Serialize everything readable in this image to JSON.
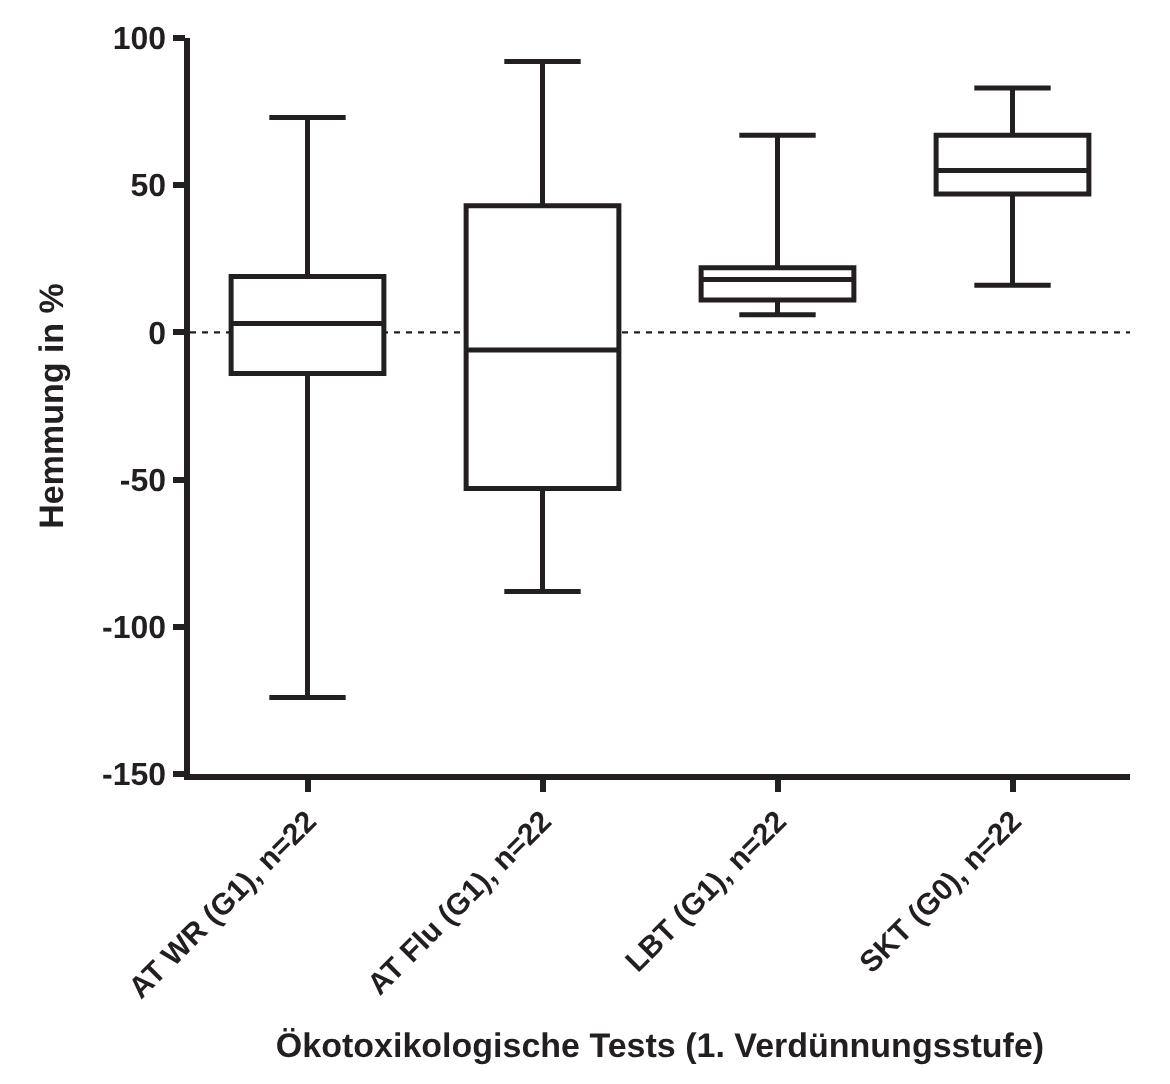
{
  "chart_data": {
    "type": "box",
    "xlabel": "Ökotoxikologische Tests (1. Verdünnungsstufe)",
    "ylabel": "Hemmung in %",
    "categories": [
      "AT WR (G1), n=22",
      "AT Flu (G1), n=22",
      "LBT (G1), n=22",
      "SKT (G0), n=22"
    ],
    "boxes": [
      {
        "low": -124,
        "q1": -14,
        "median": 3,
        "q3": 19,
        "high": 73
      },
      {
        "low": -88,
        "q1": -53,
        "median": -6,
        "q3": 43,
        "high": 92
      },
      {
        "low": 6,
        "q1": 11,
        "median": 18,
        "q3": 22,
        "high": 67
      },
      {
        "low": 16,
        "q1": 47,
        "median": 55,
        "q3": 67,
        "high": 83
      }
    ],
    "color": "#231f20",
    "ylim": [
      -150,
      100
    ],
    "yticks": [
      -150,
      -100,
      -50,
      0,
      50,
      100
    ],
    "ref_lines": [
      {
        "axis": "y",
        "value": 0,
        "line_style": "dotted",
        "color": "#231f20"
      }
    ],
    "grid": false
  }
}
